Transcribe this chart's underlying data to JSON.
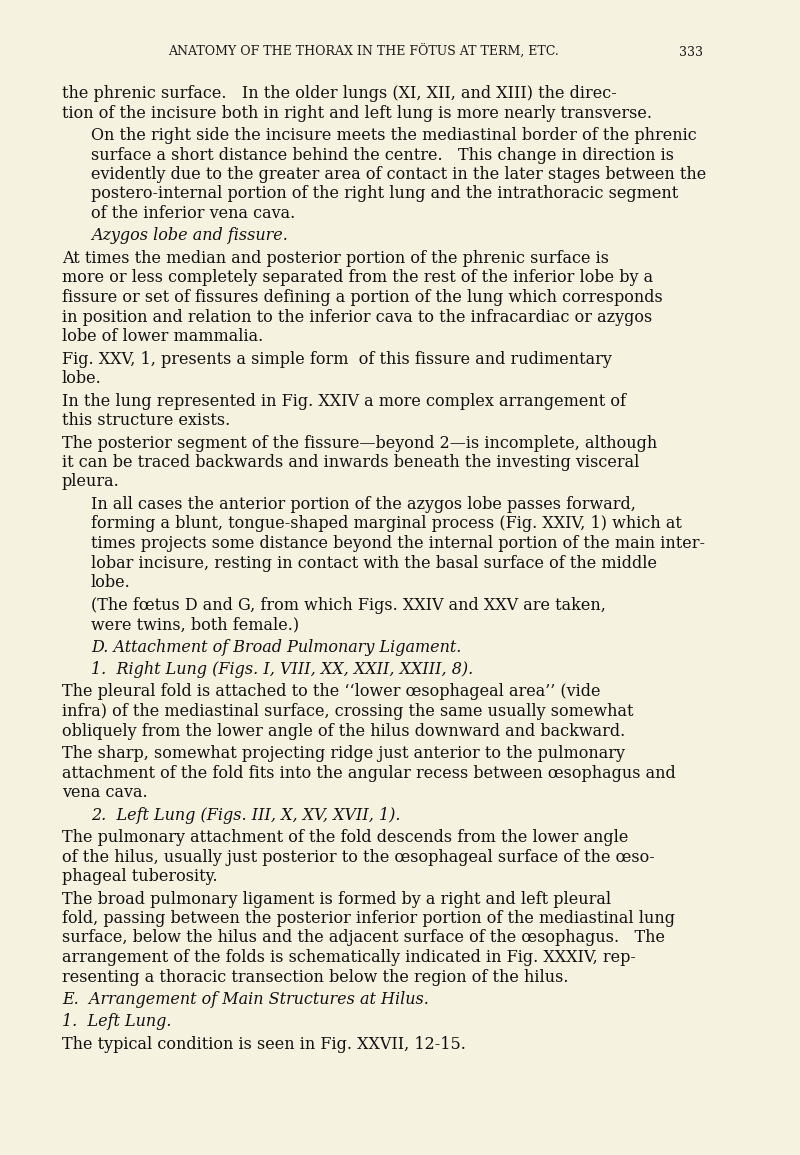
{
  "background_color": "#f5f2e0",
  "page_header": "ANATOMY OF THE THORAX IN THE FÖTUS AT TERM, ETC.",
  "page_number": "333",
  "header_fontsize": 9,
  "body_fontsize": 11.5,
  "italic_fontsize": 11.5,
  "paragraphs": [
    {
      "type": "body",
      "indent": false,
      "text": "the phrenic surface.   In the older lungs (XI, XII, and XIII) the direc-\ntion of the incisure both in right and left lung is more nearly transverse."
    },
    {
      "type": "body",
      "indent": true,
      "text": "On the right side the incisure meets the mediastinal border of the phrenic\nsurface a short distance behind the centre.   This change in direction is\nevidently due to the greater area of contact in the later stages between the\npostero-internal portion of the right lung and the intrathoracic segment\nof the inferior vena cava."
    },
    {
      "type": "italic",
      "indent": true,
      "text": "Azygos lobe and fissure."
    },
    {
      "type": "body",
      "indent": false,
      "text": "At times the median and posterior portion of the phrenic surface is\nmore or less completely separated from the rest of the inferior lobe by a\nfissure or set of fissures defining a portion of the lung which corresponds\nin position and relation to the inferior cava to the infracardiac or azygos\nlobe of lower mammalia."
    },
    {
      "type": "body",
      "indent": false,
      "text": "Fig. XXV, 1, presents a simple form  of this fissure and rudimentary\nlobe."
    },
    {
      "type": "body",
      "indent": false,
      "text": "In the lung represented in Fig. XXIV a more complex arrangement of\nthis structure exists."
    },
    {
      "type": "body",
      "indent": false,
      "text": "The posterior segment of the fissure—beyond 2—is incomplete, although\nit can be traced backwards and inwards beneath the investing visceral\npleura."
    },
    {
      "type": "body",
      "indent": true,
      "text": "In all cases the anterior portion of the azygos lobe passes forward,\nforming a blunt, tongue-shaped marginal process (Fig. XXIV, 1) which at\ntimes projects some distance beyond the internal portion of the main inter-\nlobar incisure, resting in contact with the basal surface of the middle\nlobe."
    },
    {
      "type": "body",
      "indent": true,
      "text": "(The fœtus D and G, from which Figs. XXIV and XXV are taken,\nwere twins, both female.)"
    },
    {
      "type": "italic",
      "indent": true,
      "text": "D. Attachment of Broad Pulmonary Ligament."
    },
    {
      "type": "italic",
      "indent": true,
      "text": "1.  Right Lung (Figs. I, VIII, XX, XXII, XXIII, 8)."
    },
    {
      "type": "body",
      "indent": false,
      "text": "The pleural fold is attached to the ‘‘lower œsophageal area’’ (vide\ninfra) of the mediastinal surface, crossing the same usually somewhat\nobliquely from the lower angle of the hilus downward and backward."
    },
    {
      "type": "body",
      "indent": false,
      "text": "The sharp, somewhat projecting ridge just anterior to the pulmonary\nattachment of the fold fits into the angular recess between œsophagus and\nvena cava."
    },
    {
      "type": "italic",
      "indent": true,
      "text": "2.  Left Lung (Figs. III, X, XV, XVII, 1)."
    },
    {
      "type": "body",
      "indent": false,
      "text": "The pulmonary attachment of the fold descends from the lower angle\nof the hilus, usually just posterior to the œsophageal surface of the œso-\nphageal tuberosity."
    },
    {
      "type": "body",
      "indent": false,
      "text": "The broad pulmonary ligament is formed by a right and left pleural\nfold, passing between the posterior inferior portion of the mediastinal lung\nsurface, below the hilus and the adjacent surface of the œsophagus.   The\narrangement of the folds is schematically indicated in Fig. XXXIV, rep-\nresenting a thoracic transection below the region of the hilus."
    },
    {
      "type": "italic",
      "indent": false,
      "text": "E.  Arrangement of Main Structures at Hilus."
    },
    {
      "type": "italic",
      "indent": false,
      "text": "1.  Left Lung."
    },
    {
      "type": "body",
      "indent": false,
      "text": "The typical condition is seen in Fig. XXVII, 12-15."
    }
  ]
}
